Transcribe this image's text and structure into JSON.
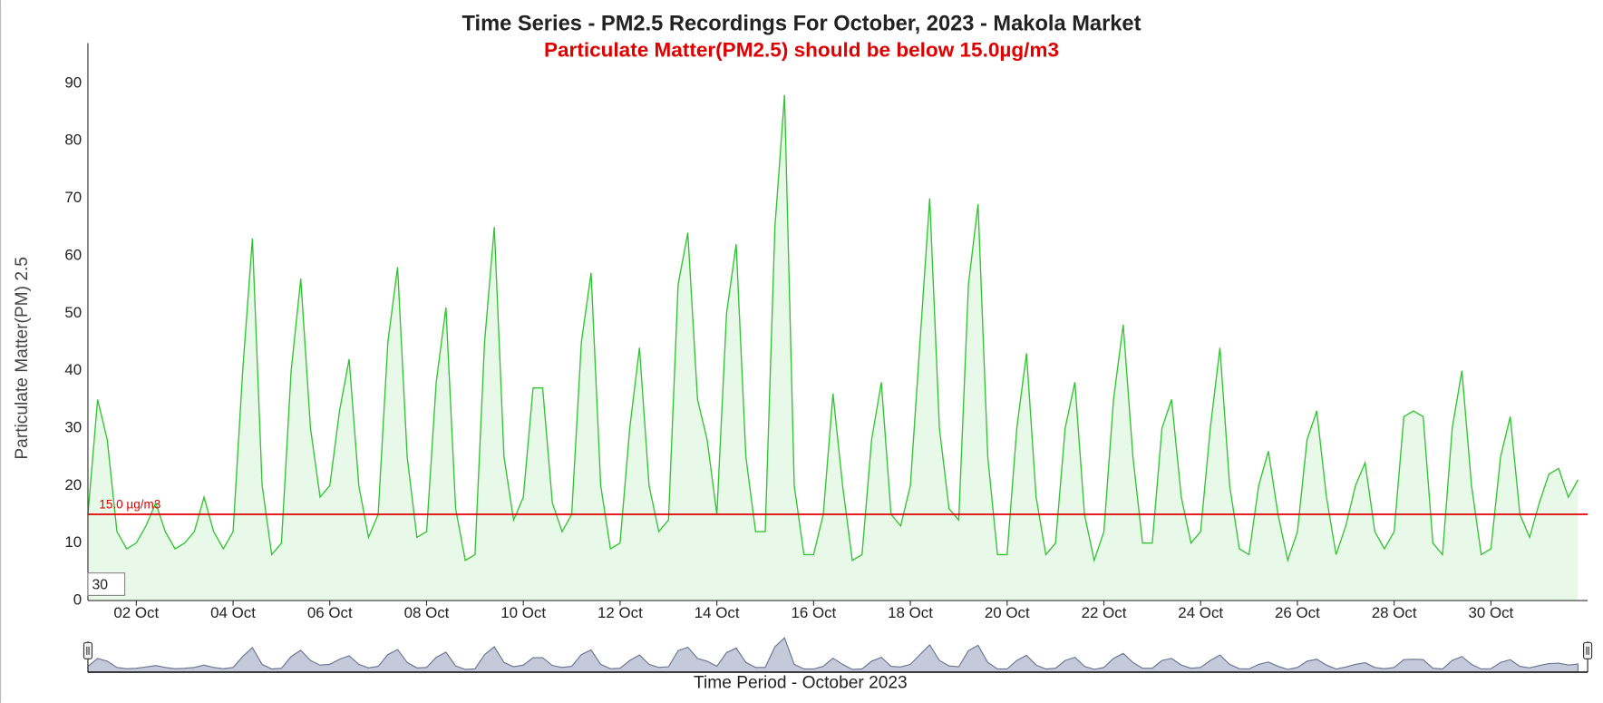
{
  "chart_data": {
    "type": "line",
    "title": "Time Series - PM2.5 Recordings For October, 2023 - Makola Market",
    "subtitle": "Particulate Matter(PM2.5) should be below 15.0µg/m3",
    "y_label": "Particulate Matter(PM) 2.5",
    "x_label": "Time Period - October 2023",
    "range_box": "30",
    "color": "#33c433",
    "fill": "#e9f9e9",
    "x": [
      1,
      1.2,
      1.4,
      1.6,
      1.8,
      2,
      2.2,
      2.4,
      2.6,
      2.8,
      3,
      3.2,
      3.4,
      3.6,
      3.8,
      4,
      4.2,
      4.4,
      4.6,
      4.8,
      5,
      5.2,
      5.4,
      5.6,
      5.8,
      6,
      6.2,
      6.4,
      6.6,
      6.8,
      7,
      7.2,
      7.4,
      7.6,
      7.8,
      8,
      8.2,
      8.4,
      8.6,
      8.8,
      9,
      9.2,
      9.4,
      9.6,
      9.8,
      10,
      10.2,
      10.4,
      10.6,
      10.8,
      11,
      11.2,
      11.4,
      11.6,
      11.8,
      12,
      12.2,
      12.4,
      12.6,
      12.8,
      13,
      13.2,
      13.4,
      13.6,
      13.8,
      14,
      14.2,
      14.4,
      14.6,
      14.8,
      15,
      15.2,
      15.4,
      15.6,
      15.8,
      16,
      16.2,
      16.4,
      16.6,
      16.8,
      17,
      17.2,
      17.4,
      17.6,
      17.8,
      18,
      18.2,
      18.4,
      18.6,
      18.8,
      19,
      19.2,
      19.4,
      19.6,
      19.8,
      20,
      20.2,
      20.4,
      20.6,
      20.8,
      21,
      21.2,
      21.4,
      21.6,
      21.8,
      22,
      22.2,
      22.4,
      22.6,
      22.8,
      23,
      23.2,
      23.4,
      23.6,
      23.8,
      24,
      24.2,
      24.4,
      24.6,
      24.8,
      25,
      25.2,
      25.4,
      25.6,
      25.8,
      26,
      26.2,
      26.4,
      26.6,
      26.8,
      27,
      27.2,
      27.4,
      27.6,
      27.8,
      28,
      28.2,
      28.4,
      28.6,
      28.8,
      29,
      29.2,
      29.4,
      29.6,
      29.8,
      30,
      30.2,
      30.4,
      30.6,
      30.8,
      31,
      31.2,
      31.4,
      31.6,
      31.8
    ],
    "values": [
      15,
      35,
      28,
      12,
      9,
      10,
      13,
      17,
      12,
      9,
      10,
      12,
      18,
      12,
      9,
      12,
      40,
      63,
      20,
      8,
      10,
      40,
      56,
      30,
      18,
      20,
      33,
      42,
      20,
      11,
      15,
      45,
      58,
      25,
      11,
      12,
      38,
      51,
      16,
      7,
      8,
      45,
      65,
      25,
      14,
      18,
      37,
      37,
      17,
      12,
      15,
      45,
      57,
      20,
      9,
      10,
      30,
      44,
      20,
      12,
      14,
      55,
      64,
      35,
      28,
      15,
      50,
      62,
      25,
      12,
      12,
      65,
      88,
      20,
      8,
      8,
      15,
      36,
      20,
      7,
      8,
      28,
      38,
      15,
      13,
      20,
      45,
      70,
      30,
      16,
      14,
      55,
      69,
      25,
      8,
      8,
      30,
      43,
      18,
      8,
      10,
      30,
      38,
      15,
      7,
      12,
      35,
      48,
      25,
      10,
      10,
      30,
      35,
      18,
      10,
      12,
      30,
      44,
      20,
      9,
      8,
      20,
      26,
      15,
      7,
      12,
      28,
      33,
      18,
      8,
      13,
      20,
      24,
      12,
      9,
      12,
      32,
      33,
      32,
      10,
      8,
      30,
      40,
      20,
      8,
      9,
      25,
      32,
      15,
      11,
      17,
      22,
      23,
      18,
      21
    ],
    "xlim": [
      1,
      32
    ],
    "xticks": [
      {
        "value": 2,
        "label": "02 Oct"
      },
      {
        "value": 4,
        "label": "04 Oct"
      },
      {
        "value": 6,
        "label": "06 Oct"
      },
      {
        "value": 8,
        "label": "08 Oct"
      },
      {
        "value": 10,
        "label": "10 Oct"
      },
      {
        "value": 12,
        "label": "12 Oct"
      },
      {
        "value": 14,
        "label": "14 Oct"
      },
      {
        "value": 16,
        "label": "16 Oct"
      },
      {
        "value": 18,
        "label": "18 Oct"
      },
      {
        "value": 20,
        "label": "20 Oct"
      },
      {
        "value": 22,
        "label": "22 Oct"
      },
      {
        "value": 24,
        "label": "24 Oct"
      },
      {
        "value": 26,
        "label": "26 Oct"
      },
      {
        "value": 28,
        "label": "28 Oct"
      },
      {
        "value": 30,
        "label": "30 Oct"
      }
    ],
    "ylim": [
      0,
      97
    ],
    "yticks": [
      0,
      10,
      20,
      30,
      40,
      50,
      60,
      70,
      80,
      90
    ],
    "threshold": {
      "value": 15,
      "label": "15.0 µg/m3",
      "color": "#e00000"
    }
  }
}
